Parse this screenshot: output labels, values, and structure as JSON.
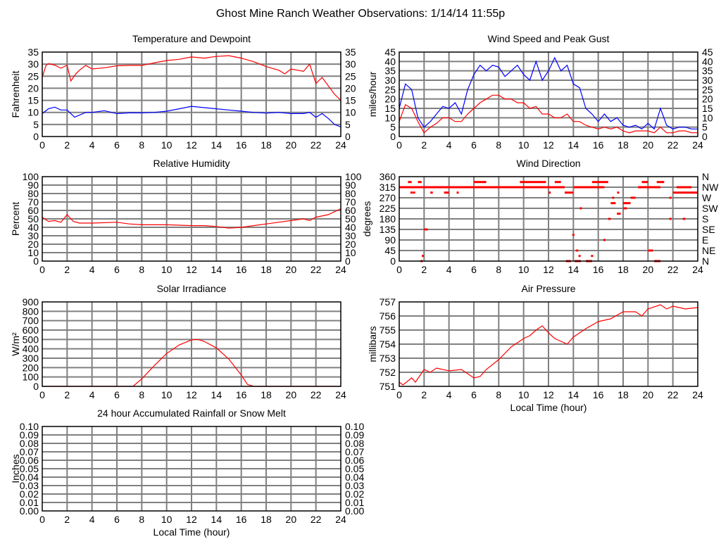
{
  "title": "Ghost Mine Ranch Weather Observations: 1/14/14 11:55p",
  "chart_data": [
    {
      "id": "temp",
      "type": "line",
      "title": "Temperature and Dewpoint",
      "xlabel": "",
      "ylabel": "Fahrenheit",
      "xlim": [
        0,
        24
      ],
      "ylim": [
        0,
        35
      ],
      "xticks": [
        "0",
        "2",
        "4",
        "6",
        "8",
        "10",
        "12",
        "14",
        "16",
        "18",
        "20",
        "22",
        "24"
      ],
      "yticks": [
        "0",
        "5",
        "10",
        "15",
        "20",
        "25",
        "30",
        "35"
      ],
      "right_ticks": [
        "0",
        "5",
        "10",
        "15",
        "20",
        "25",
        "30",
        "35"
      ],
      "grid": true,
      "series": [
        {
          "name": "Temperature",
          "color": "#ff0000",
          "points": [
            [
              0,
              24.5
            ],
            [
              0.3,
              29.5
            ],
            [
              0.5,
              30.2
            ],
            [
              1,
              29.6
            ],
            [
              1.5,
              28.3
            ],
            [
              2,
              29.6
            ],
            [
              2.3,
              23
            ],
            [
              2.7,
              26
            ],
            [
              3,
              27.5
            ],
            [
              3.5,
              29.5
            ],
            [
              4,
              28
            ],
            [
              5,
              28.5
            ],
            [
              6,
              29.3
            ],
            [
              7,
              29.5
            ],
            [
              8,
              29.5
            ],
            [
              9,
              30.5
            ],
            [
              10,
              31.5
            ],
            [
              11,
              32
            ],
            [
              12,
              33
            ],
            [
              13,
              32.5
            ],
            [
              14,
              33.2
            ],
            [
              15,
              33.5
            ],
            [
              16,
              32.5
            ],
            [
              17,
              31
            ],
            [
              18,
              29
            ],
            [
              19,
              27.5
            ],
            [
              19.5,
              26
            ],
            [
              20,
              28
            ],
            [
              21,
              27
            ],
            [
              21.5,
              30
            ],
            [
              22,
              22
            ],
            [
              22.5,
              24.5
            ],
            [
              23,
              21
            ],
            [
              23.5,
              17.5
            ],
            [
              24,
              15
            ]
          ]
        },
        {
          "name": "Dewpoint",
          "color": "#0000ff",
          "points": [
            [
              0,
              9.5
            ],
            [
              0.5,
              11.5
            ],
            [
              1,
              12.2
            ],
            [
              1.5,
              11
            ],
            [
              2,
              11
            ],
            [
              2.6,
              8
            ],
            [
              3.5,
              10
            ],
            [
              4,
              10
            ],
            [
              5,
              10.7
            ],
            [
              6,
              9.5
            ],
            [
              7,
              9.8
            ],
            [
              8,
              9.8
            ],
            [
              9,
              10
            ],
            [
              10,
              10.5
            ],
            [
              11,
              11.5
            ],
            [
              12,
              12.5
            ],
            [
              13,
              12
            ],
            [
              14,
              11.5
            ],
            [
              15,
              11
            ],
            [
              16,
              10.5
            ],
            [
              17,
              10
            ],
            [
              18,
              9.7
            ],
            [
              19,
              10
            ],
            [
              20,
              9.5
            ],
            [
              21,
              9.5
            ],
            [
              21.5,
              10
            ],
            [
              22,
              8
            ],
            [
              22.5,
              9.5
            ],
            [
              23,
              7.5
            ],
            [
              23.5,
              5
            ],
            [
              24,
              4
            ]
          ]
        }
      ]
    },
    {
      "id": "wind",
      "type": "line",
      "title": "Wind Speed and Peak Gust",
      "xlabel": "",
      "ylabel": "miles/hour",
      "xlim": [
        0,
        24
      ],
      "ylim": [
        0,
        45
      ],
      "xticks": [
        "0",
        "2",
        "4",
        "6",
        "8",
        "10",
        "12",
        "14",
        "16",
        "18",
        "20",
        "22",
        "24"
      ],
      "yticks": [
        "0",
        "5",
        "10",
        "15",
        "20",
        "25",
        "30",
        "35",
        "40",
        "45"
      ],
      "right_ticks": [
        "0",
        "5",
        "10",
        "15",
        "20",
        "25",
        "30",
        "35",
        "40",
        "45"
      ],
      "grid": true,
      "x_step": 0.5,
      "series": [
        {
          "name": "Peak Gust",
          "color": "#0000ff",
          "values": [
            15,
            28,
            25,
            10,
            5,
            8,
            12,
            16,
            15,
            18,
            12,
            25,
            33,
            38,
            35,
            38,
            37,
            32,
            35,
            38,
            33,
            30,
            40,
            30,
            35,
            42,
            35,
            38,
            28,
            26,
            15,
            12,
            8,
            12,
            8,
            10,
            6,
            5,
            6,
            4,
            7,
            4,
            15,
            6,
            4,
            5,
            5,
            4,
            4
          ]
        },
        {
          "name": "Wind Speed",
          "color": "#ff0000",
          "values": [
            8,
            17,
            15,
            8,
            2,
            5,
            7,
            10,
            10,
            8,
            8,
            12,
            15,
            18,
            20,
            22,
            22,
            20,
            20,
            18,
            18,
            15,
            16,
            12,
            12,
            10,
            10,
            12,
            8,
            8,
            6,
            5,
            4,
            5,
            4,
            5,
            3,
            2,
            3,
            3,
            3,
            2,
            5,
            2,
            2,
            3,
            3,
            2,
            2
          ]
        }
      ]
    },
    {
      "id": "rh",
      "type": "line",
      "title": "Relative Humidity",
      "xlabel": "",
      "ylabel": "Percent",
      "xlim": [
        0,
        24
      ],
      "ylim": [
        0,
        100
      ],
      "xticks": [
        "0",
        "2",
        "4",
        "6",
        "8",
        "10",
        "12",
        "14",
        "16",
        "18",
        "20",
        "22",
        "24"
      ],
      "yticks": [
        "0",
        "10",
        "20",
        "30",
        "40",
        "50",
        "60",
        "70",
        "80",
        "90",
        "100"
      ],
      "right_ticks": [
        "0",
        "10",
        "20",
        "30",
        "40",
        "50",
        "60",
        "70",
        "80",
        "90",
        "100"
      ],
      "grid": true,
      "series": [
        {
          "name": "Relative Humidity",
          "color": "#ff0000",
          "points": [
            [
              0,
              52
            ],
            [
              0.5,
              47
            ],
            [
              1,
              48
            ],
            [
              1.5,
              46
            ],
            [
              2,
              55
            ],
            [
              2.5,
              47
            ],
            [
              3,
              45
            ],
            [
              4,
              45
            ],
            [
              6,
              46
            ],
            [
              7,
              44
            ],
            [
              8,
              43
            ],
            [
              10,
              43
            ],
            [
              12,
              42
            ],
            [
              13,
              42
            ],
            [
              14,
              41
            ],
            [
              15,
              39
            ],
            [
              16,
              40
            ],
            [
              17,
              42
            ],
            [
              18,
              44
            ],
            [
              19,
              46
            ],
            [
              20,
              48
            ],
            [
              21,
              50
            ],
            [
              21.5,
              48
            ],
            [
              22,
              52
            ],
            [
              23,
              55
            ],
            [
              24,
              62
            ]
          ]
        }
      ]
    },
    {
      "id": "wdir",
      "type": "scatter",
      "title": "Wind Direction",
      "xlabel": "",
      "ylabel": "degrees",
      "xlim": [
        0,
        24
      ],
      "ylim": [
        0,
        360
      ],
      "xticks": [
        "0",
        "2",
        "4",
        "6",
        "8",
        "10",
        "12",
        "14",
        "16",
        "18",
        "20",
        "22",
        "24"
      ],
      "yticks": [
        "0",
        "45",
        "90",
        "135",
        "180",
        "225",
        "270",
        "315",
        "360"
      ],
      "right_ticks": [
        "N",
        "NE",
        "E",
        "SE",
        "S",
        "SW",
        "W",
        "NW",
        "N"
      ],
      "grid": true,
      "color": "#ff0000",
      "runs": [
        [
          0,
          13.3,
          315
        ],
        [
          14,
          16.5,
          315
        ],
        [
          19.2,
          21,
          315
        ],
        [
          22,
          24,
          292
        ],
        [
          22.3,
          23.5,
          315
        ],
        [
          0.7,
          1,
          337
        ],
        [
          1.5,
          1.8,
          337
        ],
        [
          6,
          7,
          337
        ],
        [
          9.7,
          11.8,
          337
        ],
        [
          12.5,
          13,
          337
        ],
        [
          15.5,
          16.8,
          337
        ],
        [
          19.5,
          20,
          337
        ],
        [
          20.7,
          21.3,
          337
        ],
        [
          0.9,
          1.1,
          292
        ],
        [
          2.5,
          2.7,
          292
        ],
        [
          3.6,
          4,
          292
        ],
        [
          13.3,
          14,
          292
        ],
        [
          2,
          2.3,
          135
        ],
        [
          13.4,
          13.8,
          0
        ],
        [
          14.1,
          14.6,
          0
        ],
        [
          15,
          15.5,
          0
        ],
        [
          20,
          20.4,
          45
        ],
        [
          20.5,
          21,
          0
        ],
        [
          16.8,
          17,
          180
        ],
        [
          17,
          17.4,
          247
        ],
        [
          17.5,
          17.8,
          202
        ],
        [
          18,
          18.3,
          225
        ],
        [
          18,
          18.6,
          247
        ],
        [
          18.6,
          19,
          270
        ],
        [
          22.8,
          23,
          180
        ]
      ],
      "points": [
        [
          1.8,
          0
        ],
        [
          1.9,
          22
        ],
        [
          14,
          112
        ],
        [
          14.3,
          45
        ],
        [
          14.5,
          22
        ],
        [
          14.6,
          225
        ],
        [
          15.5,
          22
        ],
        [
          16.5,
          90
        ],
        [
          17.2,
          270
        ],
        [
          17.6,
          292
        ],
        [
          21.8,
          270
        ],
        [
          21.8,
          180
        ],
        [
          12.1,
          292
        ],
        [
          4.7,
          292
        ],
        [
          1.2,
          292
        ]
      ]
    },
    {
      "id": "solar",
      "type": "line",
      "title": "Solar Irradiance",
      "xlabel": "",
      "ylabel": "W/m²",
      "xlim": [
        0,
        24
      ],
      "ylim": [
        0,
        900
      ],
      "xticks": [
        "0",
        "2",
        "4",
        "6",
        "8",
        "10",
        "12",
        "14",
        "16",
        "18",
        "20",
        "22",
        "24"
      ],
      "yticks": [
        "0",
        "100",
        "200",
        "300",
        "400",
        "500",
        "600",
        "700",
        "800",
        "900"
      ],
      "grid": true,
      "series": [
        {
          "name": "Solar Irradiance",
          "color": "#ff0000",
          "points": [
            [
              0,
              0
            ],
            [
              7.3,
              0
            ],
            [
              8,
              80
            ],
            [
              9,
              220
            ],
            [
              10,
              350
            ],
            [
              11,
              440
            ],
            [
              12,
              495
            ],
            [
              12.5,
              500
            ],
            [
              13,
              480
            ],
            [
              14,
              410
            ],
            [
              15,
              290
            ],
            [
              16,
              120
            ],
            [
              16.5,
              20
            ],
            [
              17,
              0
            ],
            [
              24,
              0
            ]
          ]
        }
      ]
    },
    {
      "id": "pressure",
      "type": "line",
      "title": "Air Pressure",
      "xlabel": "Local Time (hour)",
      "ylabel": "millibars",
      "xlim": [
        0,
        24
      ],
      "ylim": [
        751,
        757
      ],
      "xticks": [
        "0",
        "2",
        "4",
        "6",
        "8",
        "10",
        "12",
        "14",
        "16",
        "18",
        "20",
        "22",
        "24"
      ],
      "yticks": [
        "751",
        "752",
        "753",
        "754",
        "755",
        "756",
        "757"
      ],
      "grid": true,
      "series": [
        {
          "name": "Air Pressure",
          "color": "#ff0000",
          "points": [
            [
              0,
              751.3
            ],
            [
              0.3,
              751.1
            ],
            [
              1,
              751.6
            ],
            [
              1.3,
              751.3
            ],
            [
              2,
              752.2
            ],
            [
              2.5,
              752
            ],
            [
              3,
              752.3
            ],
            [
              4,
              752.1
            ],
            [
              5,
              752.2
            ],
            [
              6,
              751.6
            ],
            [
              6.5,
              751.7
            ],
            [
              7,
              752.2
            ],
            [
              8,
              752.9
            ],
            [
              9,
              753.8
            ],
            [
              10,
              754.4
            ],
            [
              10.5,
              754.6
            ],
            [
              11,
              755
            ],
            [
              11.5,
              755.3
            ],
            [
              12,
              754.8
            ],
            [
              12.5,
              754.4
            ],
            [
              13,
              754.2
            ],
            [
              13.5,
              754
            ],
            [
              14,
              754.5
            ],
            [
              14.5,
              754.8
            ],
            [
              15,
              755.1
            ],
            [
              16,
              755.6
            ],
            [
              17,
              755.8
            ],
            [
              18,
              756.3
            ],
            [
              19,
              756.3
            ],
            [
              19.5,
              756
            ],
            [
              20,
              756.5
            ],
            [
              21,
              756.8
            ],
            [
              21.5,
              756.5
            ],
            [
              22,
              756.7
            ],
            [
              23,
              756.5
            ],
            [
              24,
              756.6
            ]
          ]
        }
      ]
    },
    {
      "id": "rain",
      "type": "line",
      "title": "24 hour Accumulated Rainfall or Snow Melt",
      "xlabel": "Local Time (hour)",
      "ylabel": "Inches",
      "xlim": [
        0,
        24
      ],
      "ylim": [
        0,
        0.1
      ],
      "xticks": [
        "0",
        "2",
        "4",
        "6",
        "8",
        "10",
        "12",
        "14",
        "16",
        "18",
        "20",
        "22",
        "24"
      ],
      "yticks": [
        "0.00",
        "0.01",
        "0.02",
        "0.03",
        "0.04",
        "0.05",
        "0.06",
        "0.07",
        "0.08",
        "0.09",
        "0.10"
      ],
      "right_ticks": [
        "0.00",
        "0.01",
        "0.02",
        "0.03",
        "0.04",
        "0.05",
        "0.06",
        "0.07",
        "0.08",
        "0.09",
        "0.10"
      ],
      "grid": true,
      "series": []
    }
  ]
}
